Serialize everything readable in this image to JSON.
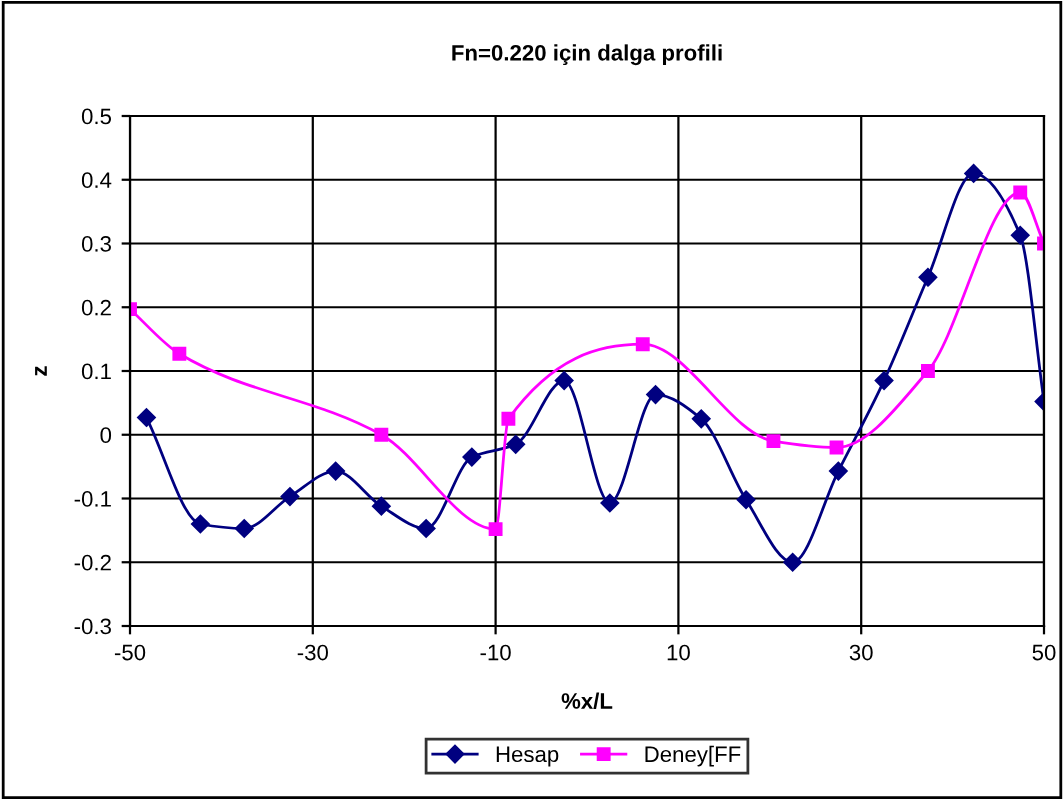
{
  "chart_data": {
    "type": "line",
    "title": "Fn=0.220 için dalga profili",
    "xlabel": "%x/L",
    "ylabel": "z",
    "xlim": [
      -50,
      50
    ],
    "xticks": [
      -50,
      -30,
      -10,
      10,
      30,
      50
    ],
    "ylim": [
      -0.3,
      0.5
    ],
    "yticks": [
      -0.3,
      -0.2,
      -0.1,
      0,
      0.1,
      0.2,
      0.3,
      0.4,
      0.5
    ],
    "grid": true,
    "legend": "bottom",
    "series": [
      {
        "name": "Hesap",
        "color": "#000080",
        "marker": "diamond",
        "x": [
          -48.2,
          -42.3,
          -37.5,
          -32.5,
          -27.5,
          -22.5,
          -17.6,
          -12.6,
          -7.8,
          -2.5,
          2.5,
          7.5,
          12.5,
          17.4,
          22.5,
          27.5,
          32.5,
          37.3,
          42.3,
          47.4,
          50
        ],
        "values": [
          0.027,
          -0.14,
          -0.147,
          -0.097,
          -0.057,
          -0.112,
          -0.147,
          -0.035,
          -0.015,
          0.085,
          -0.107,
          0.063,
          0.025,
          -0.102,
          -0.2,
          -0.057,
          0.085,
          0.247,
          0.41,
          0.313,
          0.052
        ]
      },
      {
        "name": "Deney[FF",
        "color": "#ff00ff",
        "marker": "square",
        "x": [
          -50,
          -44.6,
          -22.5,
          -10,
          -8.6,
          6.1,
          20.4,
          27.3,
          37.3,
          47.4,
          50
        ],
        "values": [
          0.197,
          0.127,
          0,
          -0.148,
          0.025,
          0.142,
          -0.01,
          -0.02,
          0.1,
          0.38,
          0.3
        ]
      }
    ]
  }
}
